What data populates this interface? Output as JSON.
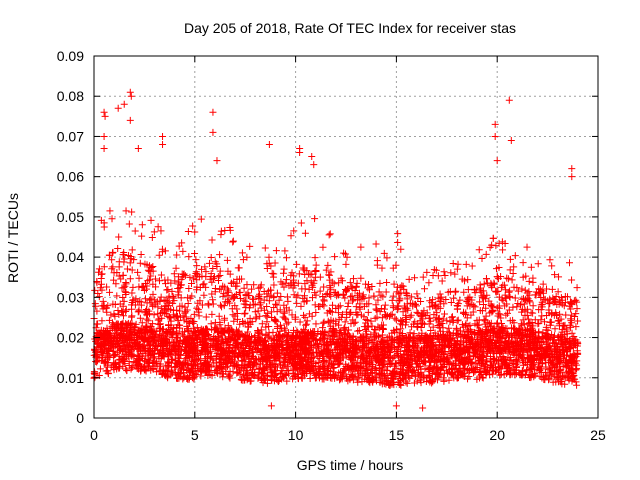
{
  "chart_data": {
    "type": "scatter",
    "title": "Day 205 of 2018, Rate Of TEC Index for receiver stas",
    "xlabel": "GPS time / hours",
    "ylabel": "ROTI / TECUs",
    "xlim": [
      0,
      25
    ],
    "ylim": [
      0,
      0.09
    ],
    "xticks": [
      0,
      5,
      10,
      15,
      20,
      25
    ],
    "xtick_labels": [
      "0",
      "5",
      "10",
      "15",
      "20",
      "25"
    ],
    "yticks": [
      0,
      0.01,
      0.02,
      0.03,
      0.04,
      0.05,
      0.06,
      0.07,
      0.08,
      0.09
    ],
    "ytick_labels": [
      "0",
      "0.01",
      "0.02",
      "0.03",
      "0.04",
      "0.05",
      "0.06",
      "0.07",
      "0.08",
      "0.09"
    ],
    "grid": true,
    "marker": "plus",
    "color": "#ff0000",
    "x_range_of_data": [
      0,
      24
    ],
    "series": [
      {
        "name": "ROTI",
        "baseline_profile": {
          "x": [
            0,
            1,
            2,
            3,
            4,
            5,
            6,
            7,
            8,
            9,
            10,
            11,
            12,
            13,
            14,
            15,
            16,
            17,
            18,
            19,
            20,
            21,
            22,
            23,
            24
          ],
          "median": [
            0.015,
            0.017,
            0.017,
            0.016,
            0.015,
            0.015,
            0.016,
            0.015,
            0.014,
            0.014,
            0.015,
            0.015,
            0.015,
            0.014,
            0.014,
            0.013,
            0.014,
            0.014,
            0.015,
            0.015,
            0.016,
            0.016,
            0.015,
            0.014,
            0.013
          ],
          "upper_envelope": [
            0.045,
            0.05,
            0.048,
            0.045,
            0.042,
            0.045,
            0.048,
            0.042,
            0.04,
            0.04,
            0.045,
            0.046,
            0.042,
            0.04,
            0.04,
            0.042,
            0.035,
            0.035,
            0.038,
            0.038,
            0.042,
            0.04,
            0.038,
            0.038,
            0.035
          ]
        },
        "notable_points": [
          {
            "x": 0.5,
            "y": 0.076
          },
          {
            "x": 0.55,
            "y": 0.075
          },
          {
            "x": 0.5,
            "y": 0.07
          },
          {
            "x": 0.5,
            "y": 0.067
          },
          {
            "x": 1.2,
            "y": 0.077
          },
          {
            "x": 1.5,
            "y": 0.078
          },
          {
            "x": 1.8,
            "y": 0.081
          },
          {
            "x": 1.85,
            "y": 0.08
          },
          {
            "x": 1.8,
            "y": 0.074
          },
          {
            "x": 2.2,
            "y": 0.067
          },
          {
            "x": 3.4,
            "y": 0.07
          },
          {
            "x": 3.4,
            "y": 0.068
          },
          {
            "x": 5.9,
            "y": 0.076
          },
          {
            "x": 5.9,
            "y": 0.071
          },
          {
            "x": 6.1,
            "y": 0.064
          },
          {
            "x": 8.7,
            "y": 0.068
          },
          {
            "x": 10.2,
            "y": 0.067
          },
          {
            "x": 10.2,
            "y": 0.066
          },
          {
            "x": 10.8,
            "y": 0.065
          },
          {
            "x": 10.9,
            "y": 0.063
          },
          {
            "x": 19.9,
            "y": 0.073
          },
          {
            "x": 19.9,
            "y": 0.07
          },
          {
            "x": 20.0,
            "y": 0.064
          },
          {
            "x": 20.6,
            "y": 0.079
          },
          {
            "x": 20.7,
            "y": 0.069
          },
          {
            "x": 23.7,
            "y": 0.062
          },
          {
            "x": 23.7,
            "y": 0.06
          },
          {
            "x": 16.3,
            "y": 0.0025
          },
          {
            "x": 15.0,
            "y": 0.003
          },
          {
            "x": 8.8,
            "y": 0.003
          }
        ]
      }
    ]
  }
}
